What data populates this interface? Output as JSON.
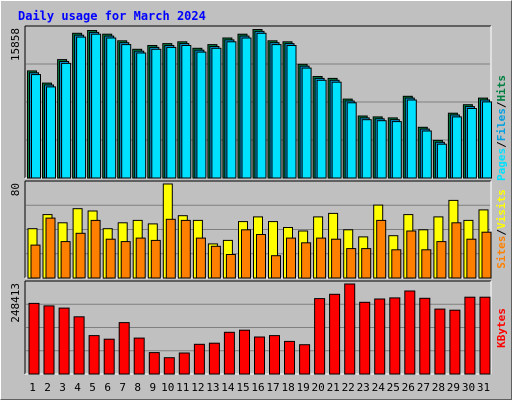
{
  "title": "Daily usage for March 2024",
  "colors": {
    "background": "#c0c0c0",
    "grid": "#7f7f7f",
    "title": "#0000ff",
    "pages": "#00e0ff",
    "files": "#00a0e0",
    "hits": "#008040",
    "visits": "#ffff00",
    "sites": "#ff8000",
    "kbytes": "#ff0000",
    "weekend_label": "#008040",
    "weekday_label": "#000000",
    "separator": "#ffffff",
    "kbytes_label": "#ff0000"
  },
  "side_labels": {
    "top": [
      {
        "text": "Pages",
        "color": "#00e0ff"
      },
      {
        "text": "/",
        "color": "#000000"
      },
      {
        "text": "Files",
        "color": "#00a0e0"
      },
      {
        "text": "/",
        "color": "#000000"
      },
      {
        "text": "Hits",
        "color": "#008040"
      }
    ],
    "mid": [
      {
        "text": "Sites",
        "color": "#ff8000"
      },
      {
        "text": "/",
        "color": "#000000"
      },
      {
        "text": "Visits",
        "color": "#ffff00"
      }
    ],
    "bottom": [
      {
        "text": "KBytes",
        "color": "#ff0000"
      }
    ]
  },
  "chart_data": [
    {
      "type": "bar",
      "panel": "top",
      "ylabel_max": "15858",
      "ylim": [
        0,
        15858
      ],
      "grid": true,
      "categories": [
        "1",
        "2",
        "3",
        "4",
        "5",
        "6",
        "7",
        "8",
        "9",
        "10",
        "11",
        "12",
        "13",
        "14",
        "15",
        "16",
        "17",
        "18",
        "19",
        "20",
        "21",
        "22",
        "23",
        "24",
        "25",
        "26",
        "27",
        "28",
        "29",
        "30",
        "31"
      ],
      "series": [
        {
          "name": "Hits",
          "values": [
            11400,
            10100,
            12600,
            15400,
            15700,
            15300,
            14600,
            13700,
            14100,
            14300,
            14500,
            13800,
            14200,
            14900,
            15300,
            15800,
            14600,
            14500,
            12100,
            10800,
            10600,
            8400,
            6600,
            6500,
            6400,
            8700,
            5400,
            4000,
            6900,
            7800,
            8500
          ]
        },
        {
          "name": "Files",
          "values": [
            11200,
            9900,
            12400,
            15200,
            15500,
            15100,
            14400,
            13500,
            13900,
            14100,
            14300,
            13600,
            14000,
            14700,
            15100,
            15600,
            14400,
            14300,
            11900,
            10600,
            10400,
            8200,
            6400,
            6300,
            6200,
            8500,
            5200,
            3800,
            6700,
            7600,
            8300
          ]
        },
        {
          "name": "Pages",
          "values": [
            11000,
            9700,
            12200,
            15000,
            15300,
            14900,
            14200,
            13300,
            13700,
            13900,
            14100,
            13400,
            13800,
            14500,
            14900,
            15400,
            14200,
            14100,
            11700,
            10400,
            10200,
            8000,
            6200,
            6100,
            6000,
            8300,
            5000,
            3600,
            6500,
            7400,
            8100
          ]
        }
      ]
    },
    {
      "type": "bar",
      "panel": "mid",
      "ylabel_max": "80",
      "ylim": [
        0,
        80
      ],
      "grid": true,
      "categories": [
        "1",
        "2",
        "3",
        "4",
        "5",
        "6",
        "7",
        "8",
        "9",
        "10",
        "11",
        "12",
        "13",
        "14",
        "15",
        "16",
        "17",
        "18",
        "19",
        "20",
        "21",
        "22",
        "23",
        "24",
        "25",
        "26",
        "27",
        "28",
        "29",
        "30",
        "31"
      ],
      "series": [
        {
          "name": "Visits",
          "values": [
            42,
            54,
            47,
            59,
            57,
            42,
            47,
            49,
            46,
            80,
            53,
            49,
            29,
            32,
            48,
            52,
            48,
            43,
            40,
            52,
            55,
            41,
            35,
            62,
            36,
            54,
            41,
            52,
            66,
            49,
            58
          ]
        },
        {
          "name": "Sites",
          "values": [
            28,
            51,
            31,
            38,
            49,
            33,
            31,
            34,
            32,
            50,
            49,
            34,
            27,
            20,
            41,
            37,
            19,
            34,
            30,
            34,
            33,
            25,
            25,
            49,
            24,
            40,
            24,
            31,
            47,
            33,
            39
          ]
        }
      ]
    },
    {
      "type": "bar",
      "panel": "bottom",
      "ylabel_max": "248413",
      "ylim": [
        0,
        248413
      ],
      "grid": true,
      "categories": [
        "1",
        "2",
        "3",
        "4",
        "5",
        "6",
        "7",
        "8",
        "9",
        "10",
        "11",
        "12",
        "13",
        "14",
        "15",
        "16",
        "17",
        "18",
        "19",
        "20",
        "21",
        "22",
        "23",
        "24",
        "25",
        "26",
        "27",
        "28",
        "29",
        "30",
        "31"
      ],
      "series": [
        {
          "name": "KBytes",
          "values": [
            195000,
            188000,
            182000,
            158000,
            106000,
            96000,
            142000,
            99000,
            59000,
            45000,
            58000,
            82000,
            85000,
            115000,
            121000,
            102000,
            106000,
            90000,
            81000,
            208000,
            220000,
            248413,
            198000,
            207000,
            210000,
            229000,
            209000,
            179000,
            176000,
            212000,
            212000
          ]
        }
      ]
    }
  ],
  "weekend_days": [
    "2",
    "3",
    "9",
    "10",
    "16",
    "17",
    "23",
    "24",
    "30",
    "31"
  ]
}
